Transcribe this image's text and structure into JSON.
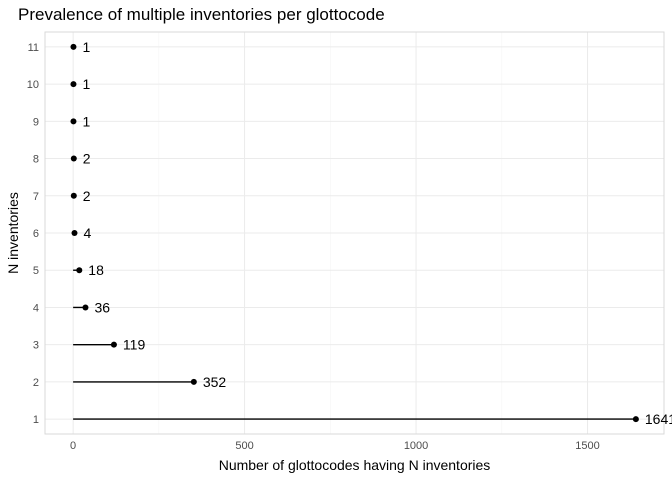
{
  "chart_data": {
    "type": "lollipop",
    "orientation": "horizontal",
    "title": "Prevalence of multiple inventories per glottocode",
    "xlabel": "Number of glottocodes having N inventories",
    "ylabel": "N inventories",
    "categories": [
      "1",
      "2",
      "3",
      "4",
      "5",
      "6",
      "7",
      "8",
      "9",
      "10",
      "11"
    ],
    "values": [
      1641,
      352,
      119,
      36,
      18,
      4,
      2,
      2,
      1,
      1,
      1
    ],
    "x_ticks": [
      "0",
      "500",
      "1000",
      "1500"
    ],
    "xlim": [
      -82,
      1723
    ],
    "grid": true,
    "legend": "none",
    "colors": {
      "marks": "#000000",
      "grid_major": "#ebebeb",
      "grid_minor": "#f5f5f5",
      "panel_border": "#d9d9d9",
      "tick_label": "#4d4d4d"
    }
  }
}
